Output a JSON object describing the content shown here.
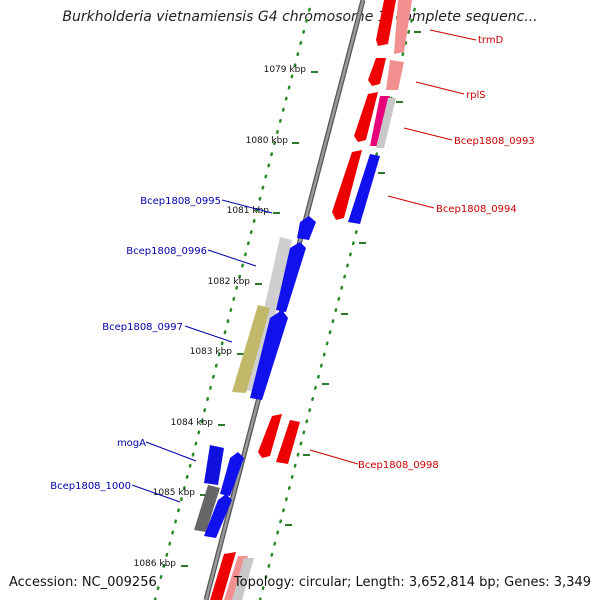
{
  "title": "Burkholderia vietnamiensis G4 chromosome 1, complete sequenc...",
  "footer": {
    "accession": "Accession: NC_009256",
    "summary": "Topology: circular; Length: 3,652,814 bp; Genes: 3,349"
  },
  "colors": {
    "backbone": "#808080",
    "forward_gene": "#ff0000",
    "reverse_gene": "#0000ff",
    "forward_label": "#cc0000",
    "reverse_label": "#0000aa",
    "tick": "#2a7a2a",
    "conservation_light": "#ff9a9a",
    "conservation_pink": "#e6007a",
    "conservation_grey": "#c8c8c8",
    "conservation_olive": "#c2b86a",
    "conservation_dark": "#666666"
  },
  "ticks": [
    "1079 kbp",
    "1080 kbp",
    "1081 kbp",
    "1082 kbp",
    "1083 kbp",
    "1084 kbp",
    "1085 kbp",
    "1086 kbp"
  ],
  "forward_genes": [
    "trmD",
    "rplS",
    "Bcep1808_0993",
    "Bcep1808_0994",
    "Bcep1808_0998"
  ],
  "reverse_genes": [
    "Bcep1808_0995",
    "Bcep1808_0996",
    "Bcep1808_0997",
    "mogA",
    "Bcep1808_1000"
  ]
}
